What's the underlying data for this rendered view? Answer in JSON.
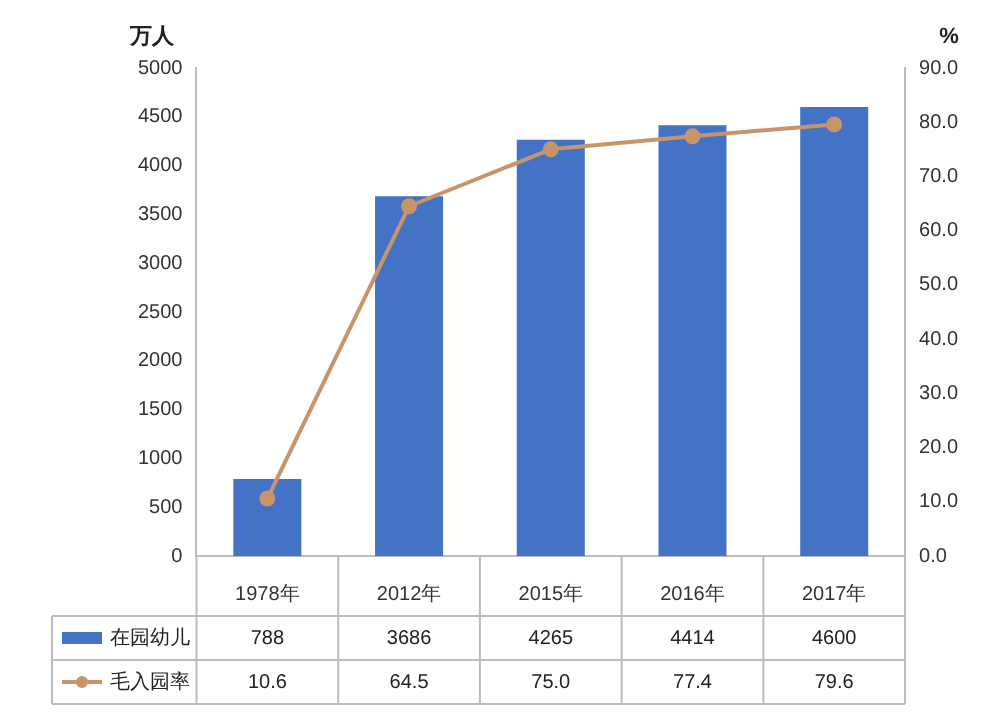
{
  "chart_data": {
    "type": "bar",
    "ylabel": "万人",
    "y2label": "%",
    "categories": [
      "1978年",
      "2012年",
      "2015年",
      "2016年",
      "2017年"
    ],
    "series": [
      {
        "name": "在园幼儿",
        "color": "#4472c4",
        "values": [
          788,
          3686,
          4265,
          4414,
          4600
        ]
      },
      {
        "name": "毛入园率",
        "type": "line",
        "axis": "y2",
        "color": "#c8956a",
        "marker": "circle",
        "values": [
          10.6,
          64.5,
          75.0,
          77.4,
          79.6
        ],
        "value_labels": [
          "10.6",
          "64.5",
          "75.0",
          "77.4",
          "79.6"
        ]
      }
    ],
    "ylim": [
      0,
      5000
    ],
    "yticks": [
      0,
      500,
      1000,
      1500,
      2000,
      2500,
      3000,
      3500,
      4000,
      4500,
      5000
    ],
    "y2lim": [
      0,
      90
    ],
    "y2ticks": [
      {
        "value": 0,
        "label": "0.0"
      },
      {
        "value": 10,
        "label": "10.0"
      },
      {
        "value": 20,
        "label": "20.0"
      },
      {
        "value": 30,
        "label": "30.0"
      },
      {
        "value": 40,
        "label": "40.0"
      },
      {
        "value": 50,
        "label": "50.0"
      },
      {
        "value": 60,
        "label": "60.0"
      },
      {
        "value": 70,
        "label": "70.0"
      },
      {
        "value": 80,
        "label": "80.0"
      },
      {
        "value": 90,
        "label": "90.0"
      }
    ],
    "data_labels": true,
    "grid": false,
    "legend": "bottom"
  }
}
